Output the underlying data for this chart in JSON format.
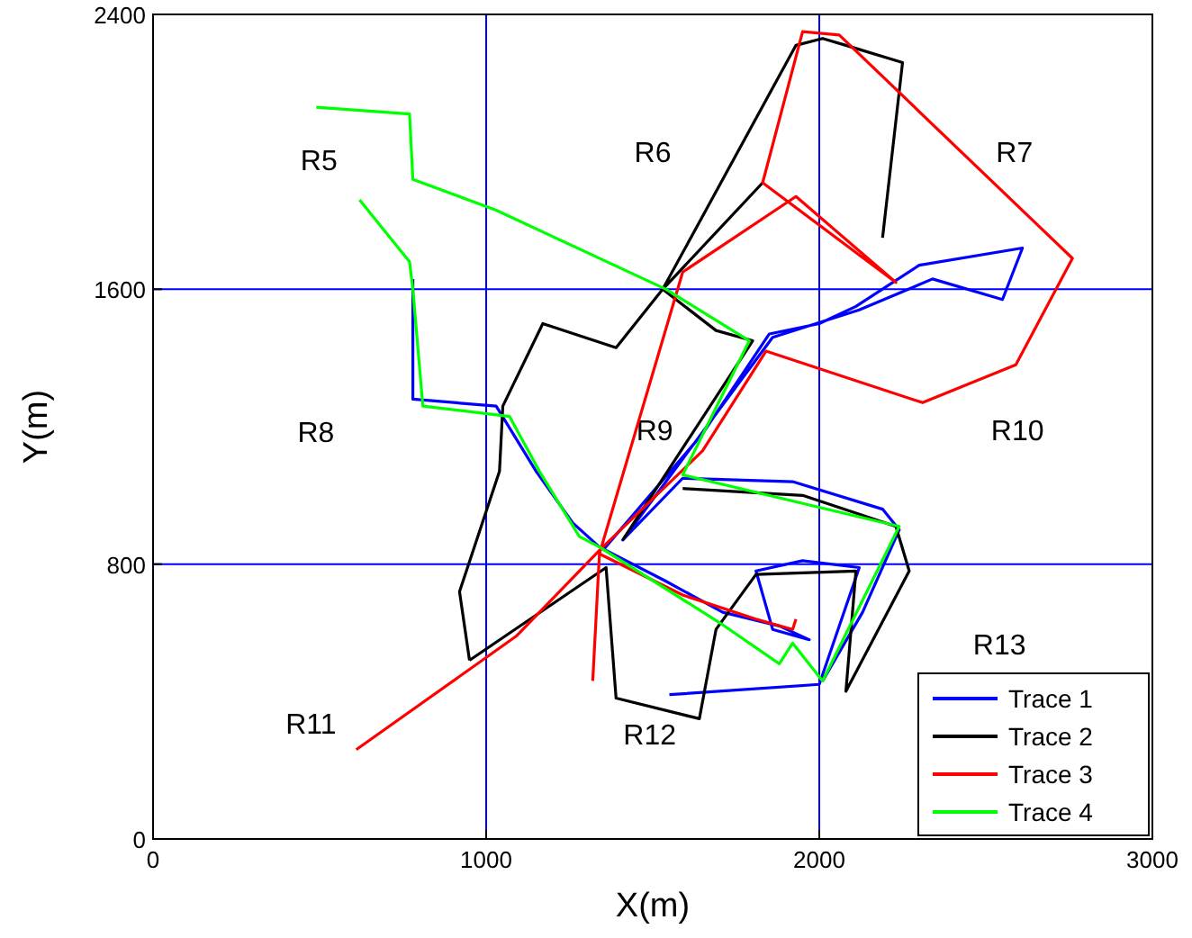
{
  "chart_data": {
    "type": "line",
    "xlabel": "X(m)",
    "ylabel": "Y(m)",
    "xlim": [
      0,
      3000
    ],
    "ylim": [
      0,
      2400
    ],
    "xticks": [
      0,
      1000,
      2000,
      3000
    ],
    "yticks": [
      0,
      800,
      1600,
      2400
    ],
    "grid": true,
    "legend": "bottom right",
    "marker": "none",
    "line_style": "solid",
    "annotations": [
      "R5",
      "R6",
      "R7",
      "R8",
      "R9",
      "R10",
      "R11",
      "R12",
      "R13"
    ],
    "series": [
      {
        "name": "Trace 1",
        "color": "#0000ff",
        "x": [
          780,
          780,
          1030,
          1150,
          1260,
          1340,
          1540,
          1710,
          1880,
          1970,
          1860,
          1810,
          1950,
          2120,
          2000,
          1550,
          null,
          1350,
          1650,
          1850,
          2000,
          2110,
          2300,
          2610,
          2550,
          2340,
          2120,
          1860,
          1410,
          1590,
          1920,
          2190,
          2240,
          2130,
          2010
        ],
        "values": [
          1630,
          1280,
          1260,
          1070,
          920,
          850,
          750,
          660,
          620,
          580,
          610,
          780,
          810,
          790,
          450,
          420,
          null,
          840,
          1180,
          1470,
          1500,
          1550,
          1670,
          1720,
          1570,
          1630,
          1540,
          1460,
          870,
          1050,
          1040,
          960,
          900,
          660,
          460
        ]
      },
      {
        "name": "Trace 2",
        "color": "#000000",
        "x": [
          950,
          920,
          1040,
          1050,
          1170,
          1390,
          1530,
          1930,
          2010,
          2080,
          2250,
          2190,
          null,
          1830,
          1530,
          1690,
          1800,
          1410,
          null,
          1590,
          1950,
          2230,
          2270,
          2080,
          2110,
          1810,
          1690,
          1640,
          1390,
          1360,
          950
        ],
        "values": [
          520,
          720,
          1070,
          1260,
          1500,
          1430,
          1600,
          2310,
          2330,
          2310,
          2260,
          1750,
          null,
          1910,
          1600,
          1480,
          1450,
          870,
          null,
          1020,
          1000,
          910,
          780,
          430,
          780,
          770,
          610,
          350,
          410,
          790,
          520
        ]
      },
      {
        "name": "Trace 3",
        "color": "#ff0000",
        "x": [
          610,
          1090,
          1340,
          1650,
          1840,
          2310,
          2590,
          2760,
          2060,
          1950,
          1830,
          2230,
          1930,
          1590,
          1340,
          1320,
          null,
          1340,
          1590,
          1810,
          1920,
          1930
        ],
        "values": [
          260,
          590,
          840,
          1130,
          1420,
          1270,
          1380,
          1690,
          2340,
          2350,
          1910,
          1620,
          1870,
          1650,
          830,
          460,
          null,
          830,
          710,
          640,
          610,
          640
        ]
      },
      {
        "name": "Trace 4",
        "color": "#00ff00",
        "x": [
          490,
          770,
          780,
          1030,
          1540,
          1790,
          1590,
          2240,
          2010,
          1920,
          1880,
          1700,
          1340,
          null,
          620,
          770,
          780,
          810,
          1070,
          1160,
          1280,
          1340
        ],
        "values": [
          2130,
          2110,
          1920,
          1830,
          1600,
          1450,
          1060,
          910,
          460,
          570,
          510,
          630,
          850,
          null,
          1860,
          1680,
          1600,
          1260,
          1230,
          1070,
          880,
          850
        ]
      }
    ]
  }
}
